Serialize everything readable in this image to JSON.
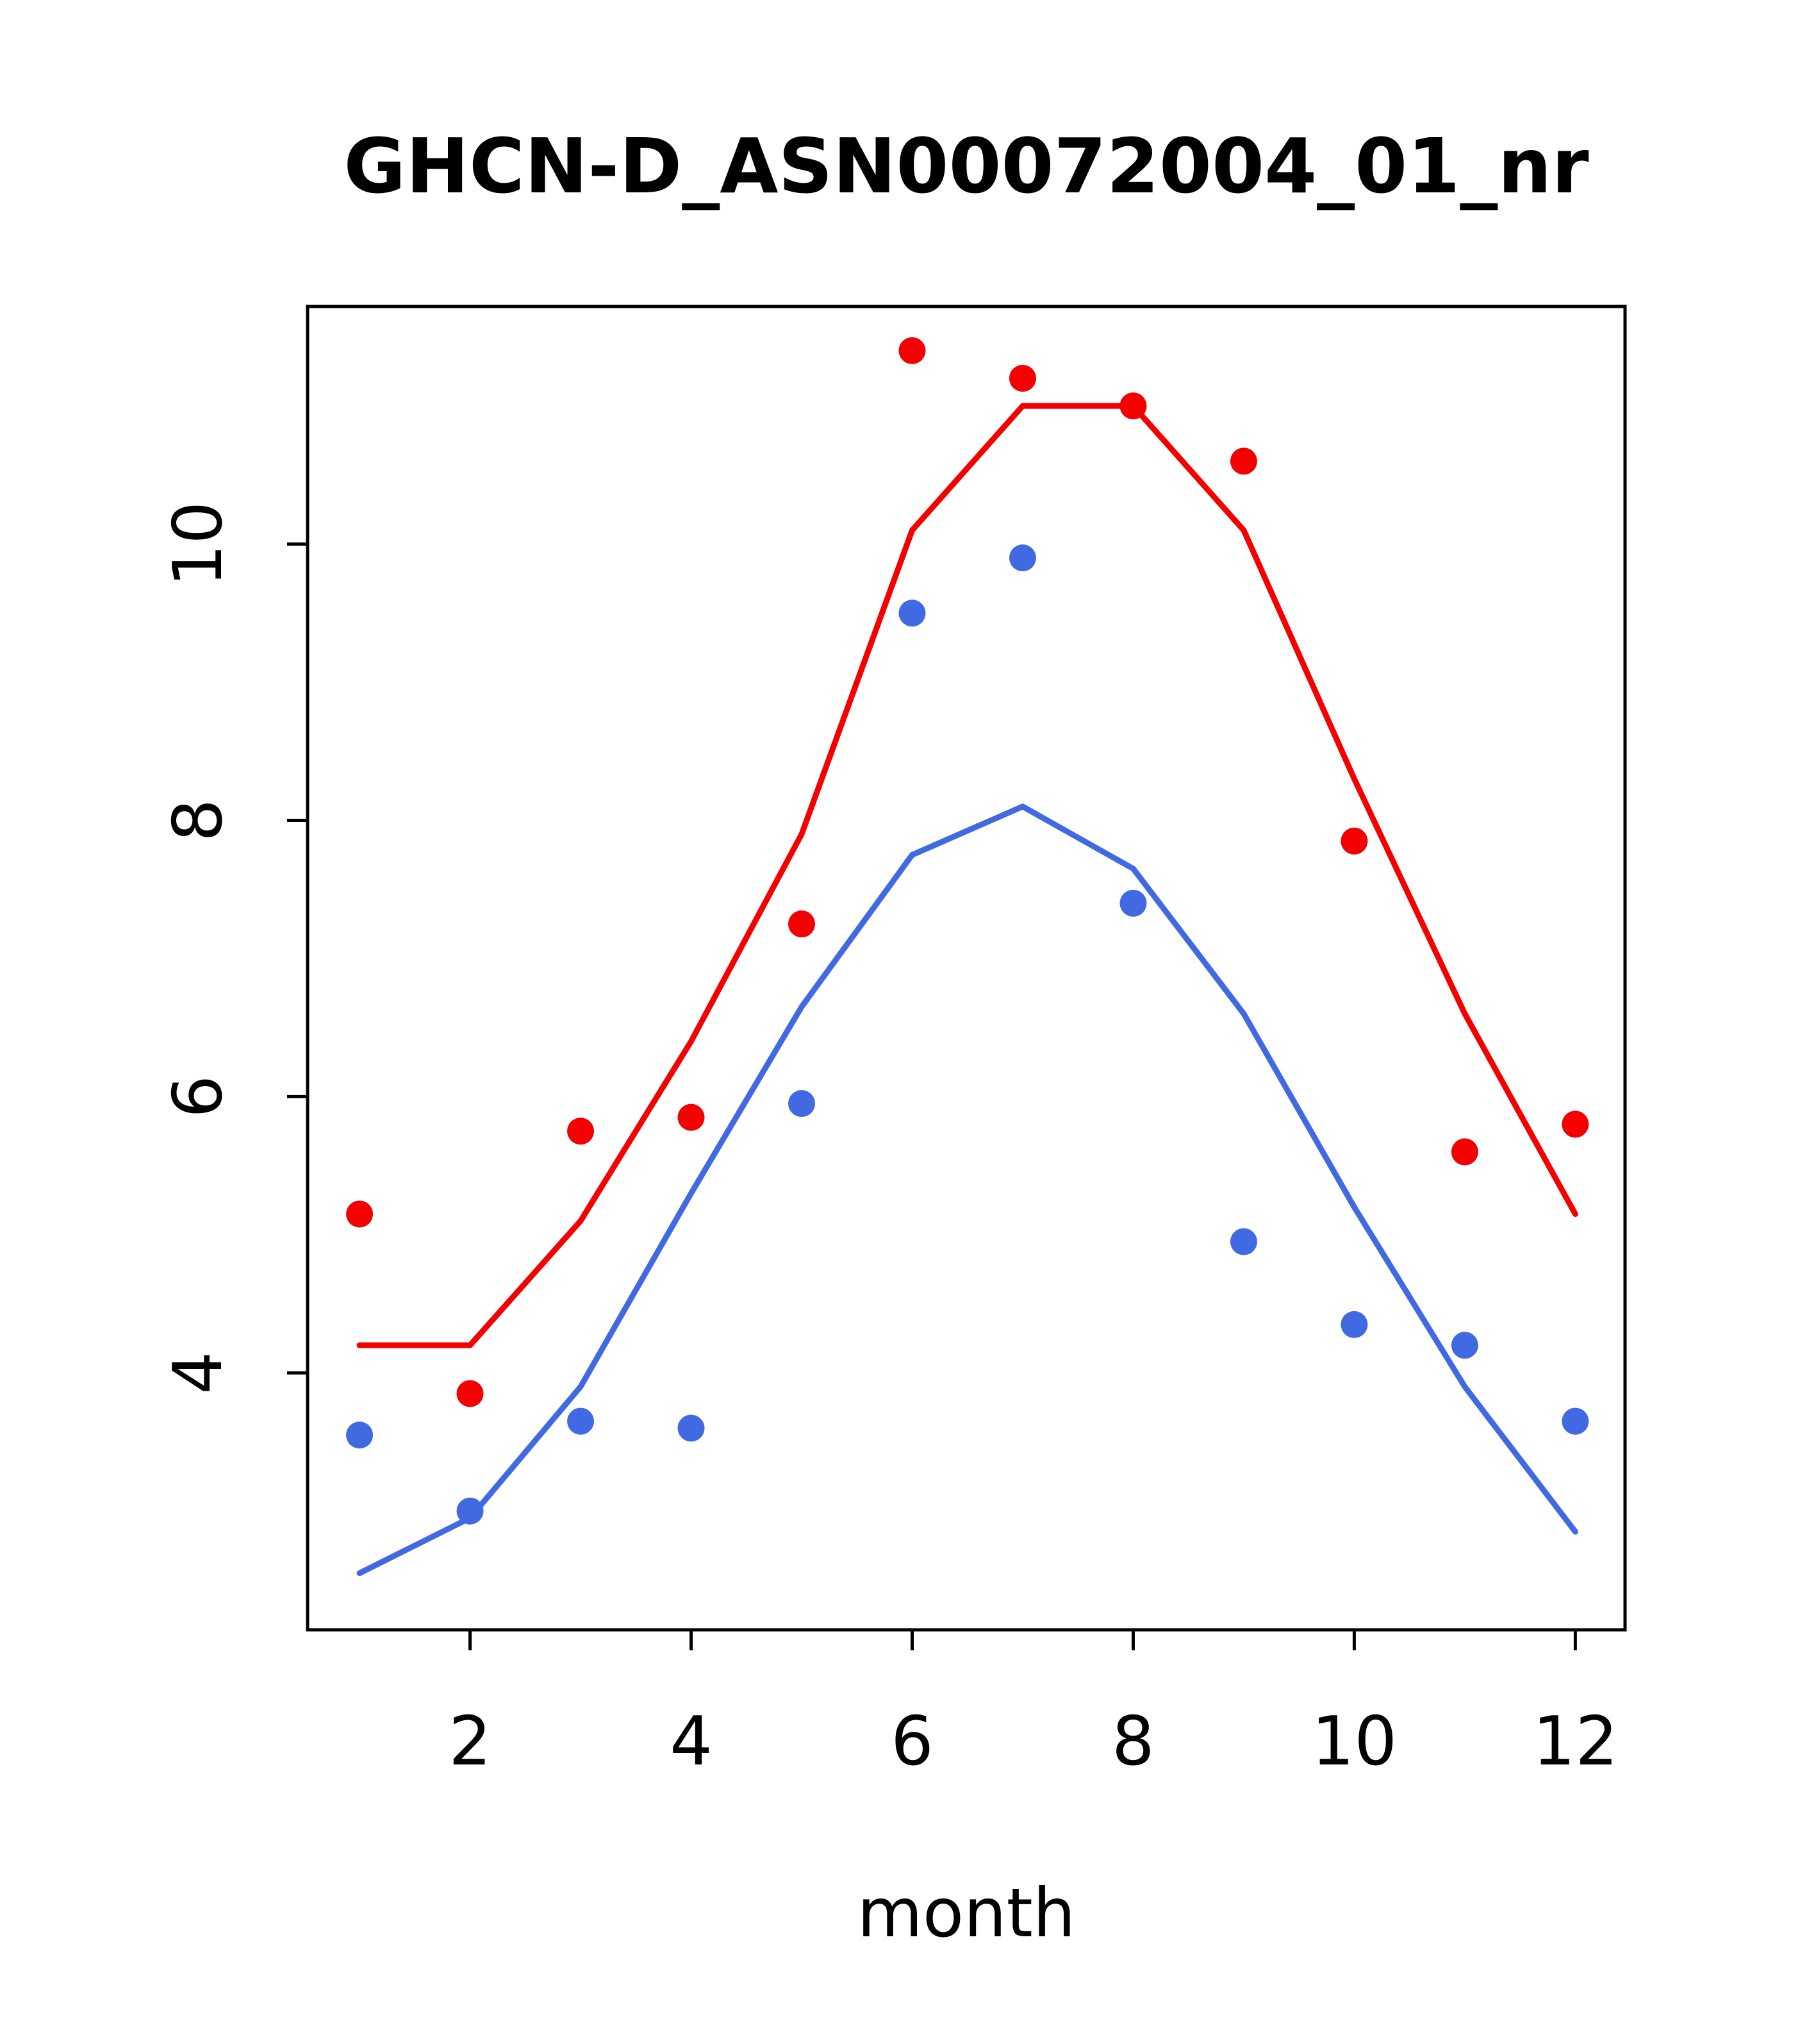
{
  "title": "GHCN-D_ASN00072004_01_nr",
  "xlabel": "month",
  "chart_data": {
    "type": "scatter",
    "title": "GHCN-D_ASN00072004_01_nr",
    "xlabel": "month",
    "ylabel": "",
    "x": [
      1,
      2,
      3,
      4,
      5,
      6,
      7,
      8,
      9,
      10,
      11,
      12
    ],
    "x_ticks": [
      2,
      4,
      6,
      8,
      10,
      12
    ],
    "y_ticks": [
      4,
      6,
      8,
      10
    ],
    "xlim": [
      0.53,
      12.45
    ],
    "ylim": [
      2.14,
      11.72
    ],
    "grid": false,
    "legend": "none",
    "series": [
      {
        "name": "red-line",
        "kind": "line",
        "color": "#f40000",
        "values": [
          4.2,
          4.2,
          5.1,
          6.4,
          7.9,
          10.1,
          11.0,
          11.0,
          10.1,
          8.3,
          6.6,
          5.15
        ]
      },
      {
        "name": "blue-line",
        "kind": "line",
        "color": "#4169e1",
        "values": [
          2.55,
          2.95,
          3.9,
          5.3,
          6.65,
          7.75,
          8.1,
          7.65,
          6.6,
          5.2,
          3.9,
          2.85
        ]
      },
      {
        "name": "red-points",
        "kind": "points",
        "color": "#f40000",
        "values": [
          5.15,
          3.85,
          5.75,
          5.85,
          7.25,
          11.4,
          11.2,
          11.0,
          10.6,
          7.85,
          5.6,
          5.8
        ]
      },
      {
        "name": "blue-points",
        "kind": "points",
        "color": "#4169e1",
        "values": [
          3.55,
          3.0,
          3.65,
          3.6,
          5.95,
          9.5,
          9.9,
          7.4,
          4.95,
          4.35,
          4.2,
          3.65
        ]
      }
    ]
  }
}
